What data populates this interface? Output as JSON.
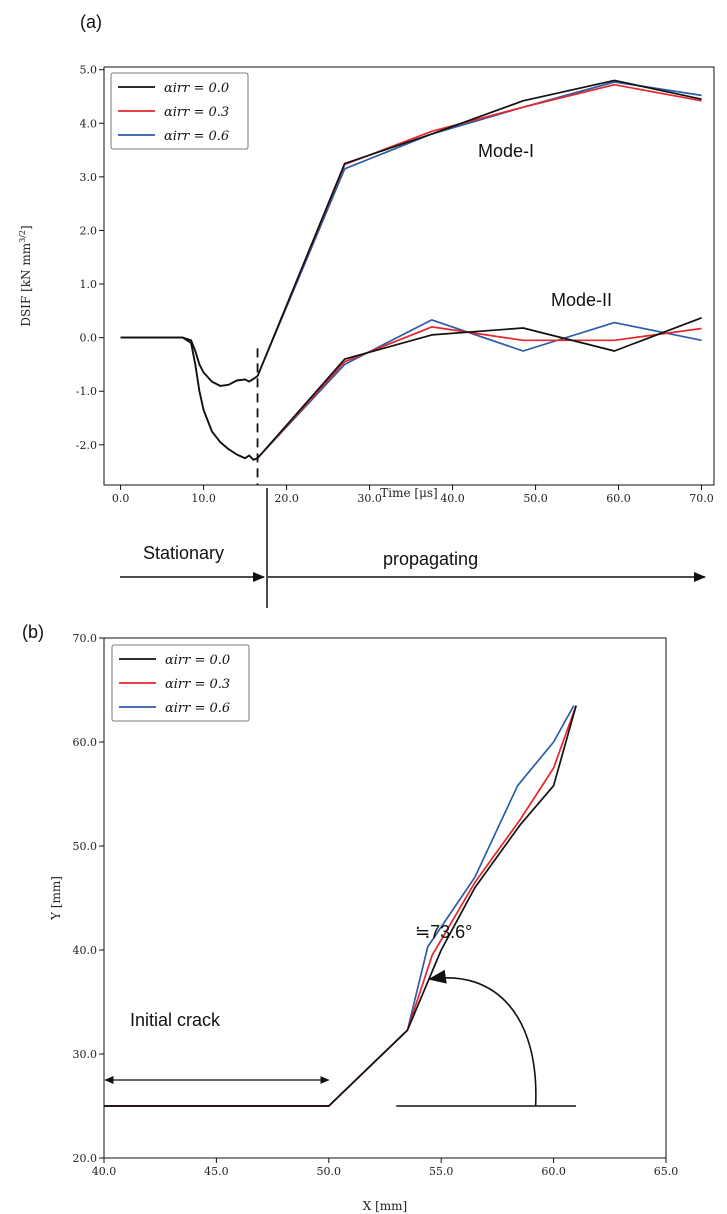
{
  "colors": {
    "black": "#111111",
    "red": "#e8262b",
    "blue": "#2c5ca8"
  },
  "legend_entries": [
    "αirr = 0.0",
    "αirr = 0.3",
    "αirr = 0.6"
  ],
  "panel_a": {
    "label": "(a)",
    "mode_labels": {
      "mode1": "Mode-I",
      "mode2": "Mode-II"
    },
    "phase_labels": {
      "stationary": "Stationary",
      "propagating": "propagating"
    },
    "chart_data": {
      "type": "line",
      "xlabel": "Time [μs]",
      "ylabel": "DSIF [kN mm^3/2]",
      "xlim": [
        -2.0,
        71.5
      ],
      "ylim": [
        -2.75,
        5.05
      ],
      "xticks": [
        0,
        10,
        20,
        30,
        40,
        50,
        60,
        70
      ],
      "xtick_labels": [
        "0.0",
        "10.0",
        "20.0",
        "30.0",
        "40.0",
        "50.0",
        "60.0",
        "70.0"
      ],
      "yticks": [
        -2,
        -1,
        0,
        1,
        2,
        3,
        4,
        5
      ],
      "ytick_labels": [
        "-2.0",
        "-1.0",
        "0.0",
        "1.0",
        "2.0",
        "3.0",
        "4.0",
        "5.0"
      ],
      "grid": false,
      "legend_position": "top-left",
      "crack_start_time": 16.5,
      "stationary_common": {
        "mode1": {
          "x": [
            0,
            7.5,
            8.5,
            9.0,
            9.5,
            10.0,
            11.0,
            12.0,
            13.0,
            14.0,
            15.0,
            15.5,
            16.0,
            16.5
          ],
          "y": [
            0,
            0,
            -0.05,
            -0.25,
            -0.5,
            -0.65,
            -0.82,
            -0.9,
            -0.88,
            -0.8,
            -0.78,
            -0.82,
            -0.77,
            -0.72
          ]
        },
        "mode2": {
          "x": [
            0,
            7.5,
            8.5,
            9.0,
            9.5,
            10.0,
            11.0,
            12.0,
            13.0,
            14.0,
            15.0,
            15.5,
            16.0,
            16.5
          ],
          "y": [
            0,
            0,
            -0.1,
            -0.5,
            -1.0,
            -1.35,
            -1.75,
            -1.95,
            -2.08,
            -2.18,
            -2.25,
            -2.2,
            -2.28,
            -2.25
          ]
        }
      },
      "series": [
        {
          "name": "αirr = 0.0",
          "color": "black",
          "mode1": {
            "x": [
              16.5,
              27.0,
              37.5,
              48.5,
              59.5,
              70.0
            ],
            "y": [
              -0.72,
              3.25,
              3.8,
              4.42,
              4.8,
              4.45
            ]
          },
          "mode2": {
            "x": [
              16.5,
              27.0,
              37.5,
              48.5,
              59.5,
              70.0
            ],
            "y": [
              -2.25,
              -0.4,
              0.05,
              0.18,
              -0.25,
              0.37
            ]
          }
        },
        {
          "name": "αirr = 0.3",
          "color": "red",
          "mode1": {
            "x": [
              16.5,
              27.0,
              37.5,
              48.5,
              59.5,
              70.0
            ],
            "y": [
              -0.72,
              3.23,
              3.85,
              4.3,
              4.72,
              4.42
            ]
          },
          "mode2": {
            "x": [
              16.5,
              27.0,
              37.5,
              48.5,
              59.5,
              70.0
            ],
            "y": [
              -2.25,
              -0.45,
              0.2,
              -0.05,
              -0.05,
              0.17
            ]
          }
        },
        {
          "name": "αirr = 0.6",
          "color": "blue",
          "mode1": {
            "x": [
              16.5,
              27.0,
              37.5,
              48.5,
              59.5,
              70.0
            ],
            "y": [
              -0.72,
              3.15,
              3.8,
              4.3,
              4.77,
              4.52
            ]
          },
          "mode2": {
            "x": [
              16.5,
              27.0,
              37.5,
              48.5,
              59.5,
              70.0
            ],
            "y": [
              -2.25,
              -0.5,
              0.33,
              -0.25,
              0.28,
              -0.05
            ]
          }
        }
      ]
    }
  },
  "panel_b": {
    "label": "(b)",
    "initial_crack_label": "Initial crack",
    "angle_label": "≒73.6°",
    "chart_data": {
      "type": "line",
      "xlabel": "X [mm]",
      "ylabel": "Y [mm]",
      "xlim": [
        40,
        65
      ],
      "ylim": [
        20,
        70
      ],
      "xticks": [
        40,
        45,
        50,
        55,
        60,
        65
      ],
      "xtick_labels": [
        "40.0",
        "45.0",
        "50.0",
        "55.0",
        "60.0",
        "65.0"
      ],
      "yticks": [
        20,
        30,
        40,
        50,
        60,
        70
      ],
      "ytick_labels": [
        "20.0",
        "30.0",
        "40.0",
        "50.0",
        "60.0",
        "70.0"
      ],
      "grid": false,
      "legend_position": "top-left",
      "initial_crack_x": [
        40,
        50
      ],
      "reference_line": {
        "x": [
          53.0,
          61.0
        ],
        "y": 25.0
      },
      "angle_deg": 73.6,
      "series": [
        {
          "name": "αirr = 0.0",
          "color": "black",
          "x": [
            40,
            50,
            53.5,
            55.0,
            56.5,
            58.5,
            60.0,
            61.0
          ],
          "y": [
            25,
            25,
            32.3,
            40.0,
            46.0,
            52.0,
            55.8,
            63.5
          ]
        },
        {
          "name": "αirr = 0.3",
          "color": "red",
          "x": [
            40,
            50,
            53.5,
            54.6,
            56.5,
            58.5,
            60.0,
            61.0
          ],
          "y": [
            25,
            25,
            32.3,
            39.5,
            46.5,
            52.5,
            57.5,
            63.5
          ]
        },
        {
          "name": "αirr = 0.6",
          "color": "blue",
          "x": [
            40,
            50,
            53.5,
            54.4,
            56.5,
            58.4,
            60.0,
            60.9
          ],
          "y": [
            25,
            25,
            32.3,
            40.3,
            47.0,
            55.8,
            60.0,
            63.5
          ]
        }
      ]
    }
  }
}
